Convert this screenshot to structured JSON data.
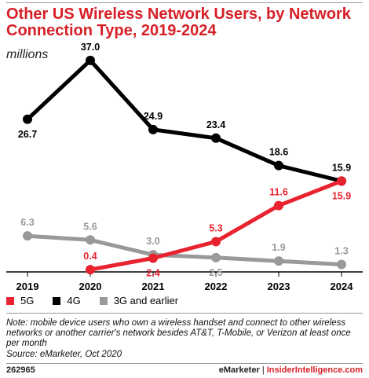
{
  "header": {
    "title": "Other US Wireless Network Users, by Network Connection Type, 2019-2024",
    "subtitle": "millions"
  },
  "chart_data": {
    "type": "line",
    "categories": [
      "2019",
      "2020",
      "2021",
      "2022",
      "2023",
      "2024"
    ],
    "series": [
      {
        "name": "5G",
        "color": "#e8222e",
        "values": [
          null,
          0.4,
          2.4,
          5.3,
          11.6,
          15.9
        ],
        "labels": [
          "",
          "0.4",
          "2.4",
          "5.3",
          "11.6",
          "15.9"
        ]
      },
      {
        "name": "4G",
        "color": "#000000",
        "values": [
          26.7,
          37.0,
          24.9,
          23.4,
          18.6,
          15.9
        ],
        "labels": [
          "26.7",
          "37.0",
          "24.9",
          "23.4",
          "18.6",
          "15.9"
        ]
      },
      {
        "name": "3G and earlier",
        "color": "#999999",
        "values": [
          6.3,
          5.6,
          3.0,
          2.5,
          1.9,
          1.3
        ],
        "labels": [
          "6.3",
          "5.6",
          "3.0",
          "2.5",
          "1.9",
          "1.3"
        ]
      }
    ],
    "ylim": [
      0,
      40
    ],
    "grid": false,
    "legend_position": "bottom-left"
  },
  "legend": [
    {
      "label": "5G",
      "color": "#e8222e"
    },
    {
      "label": "4G",
      "color": "#000000"
    },
    {
      "label": "3G and earlier",
      "color": "#999999"
    }
  ],
  "footer": {
    "note": "Note: mobile device users who own a wireless handset and connect to other wireless networks or another carrier's network besides AT&T, T-Mobile, or Verizon at least once per month",
    "source": "Source: eMarketer, Oct 2020",
    "chart_id": "262965",
    "brand_em": "eMarketer",
    "separator": "|",
    "brand_ii": "InsiderIntelligence.com"
  }
}
